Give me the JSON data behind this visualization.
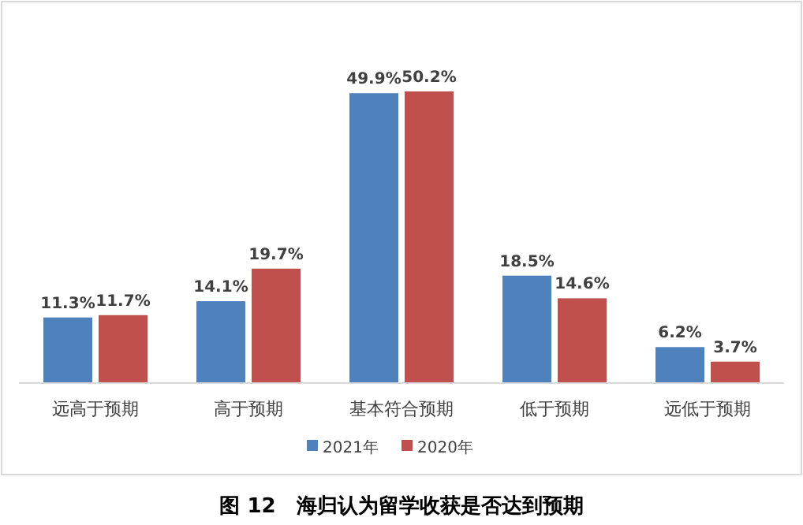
{
  "chart_data": {
    "type": "bar",
    "title": "图 12　海归认为留学收获是否达到预期",
    "categories": [
      "远高于预期",
      "高于预期",
      "基本符合预期",
      "低于预期",
      "远低于预期"
    ],
    "series": [
      {
        "name": "2021年",
        "color": "#4f81bd",
        "values": [
          11.3,
          14.1,
          49.9,
          18.5,
          6.2
        ],
        "value_labels": [
          "11.3%",
          "14.1%",
          "49.9%",
          "18.5%",
          "6.2%"
        ]
      },
      {
        "name": "2020年",
        "color": "#c0504d",
        "values": [
          11.7,
          19.7,
          50.2,
          14.6,
          3.7
        ],
        "value_labels": [
          "11.7%",
          "19.7%",
          "50.2%",
          "14.6%",
          "3.7%"
        ]
      }
    ],
    "legend": "bottom"
  }
}
